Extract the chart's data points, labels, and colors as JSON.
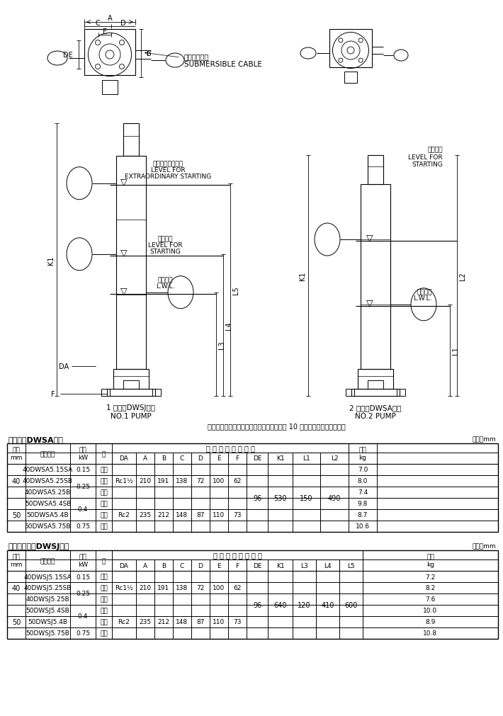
{
  "fig_width": 7.1,
  "fig_height": 10.12,
  "bg_color": "#ffffff",
  "note_text": "注）運転可能最低水位での連続運転時間は 10 分以内にしてください。",
  "pump1_label1": "1 号機（DWSJ型）",
  "pump1_label2": "NO.1 PUMP",
  "pump2_label1": "2 号機（DWSA型）",
  "pump2_label2": "NO.2 PUMP",
  "cable_jp": "水中ケーブル",
  "cable_en": "SUBMERSIBLE CABLE",
  "extrao_jp": "異常増水始動水位",
  "extrao_en1": "LEVEL FOR",
  "extrao_en2": "EXTRAORDINARY STARTING",
  "start1_jp": "始動水位",
  "start1_en1": "LEVEL FOR",
  "start1_en2": "STARTING",
  "stop1_jp": "停止水位",
  "stop1_en": "L.W.L.",
  "start2_jp": "始動水位",
  "start2_en1": "LEVEL FOR",
  "start2_en2": "STARTING",
  "stop2_jp": "停止水位",
  "stop2_en": "L.W.L.",
  "table1_title": "自動形（DWSA型）",
  "table1_unit": "単位：mm",
  "table2_title": "自動交互形（DWSJ型）",
  "table2_unit": "単位：mm",
  "pump_header": "ポ ン プ 及 び 電 動 機",
  "col_keiro": "口径",
  "col_mm": "mm",
  "col_ki": "機　　名",
  "col_shutsu": "出力",
  "col_kw": "kW",
  "col_so": "相",
  "col_mass_jp": "質量",
  "col_mass_kg": "kg",
  "dim_A": "A",
  "dim_B": "B",
  "dim_C": "C",
  "dim_D": "D",
  "dim_E": "E",
  "dim_DE": "DE",
  "dim_F": "F",
  "dim_K1": "K1",
  "dim_DA": "DA",
  "dim_L1": "L1",
  "dim_L2": "L2",
  "dim_L3": "L3",
  "dim_L4": "L4",
  "dim_L5": "L5",
  "t1_mnames": [
    "40DWSA5.15SA",
    "40DWSA5.25SB",
    "40DWSA5.25B",
    "50DWSA5.4SB",
    "50DWSA5.4B",
    "50DWSA5.75B"
  ],
  "t1_keiro": [
    "40",
    "40",
    "40",
    "50",
    "50",
    "50"
  ],
  "t1_shutsu": [
    "0.15",
    "0.25",
    "0.25",
    "0.4",
    "0.4",
    "0.75"
  ],
  "t1_so": [
    "単相",
    "単相",
    "三相",
    "単相",
    "三相",
    "三相"
  ],
  "t1_DA": [
    "Rc1½",
    "",
    "",
    "Rc2",
    "",
    ""
  ],
  "t1_A": [
    "210",
    "",
    "",
    "235",
    "",
    ""
  ],
  "t1_B": [
    "191",
    "",
    "",
    "212",
    "",
    ""
  ],
  "t1_C": [
    "138",
    "",
    "",
    "148",
    "",
    ""
  ],
  "t1_D": [
    "72",
    "",
    "",
    "87",
    "",
    ""
  ],
  "t1_E": [
    "100",
    "",
    "",
    "110",
    "",
    ""
  ],
  "t1_F": [
    "62",
    "",
    "",
    "73",
    "",
    ""
  ],
  "t1_DE": "96",
  "t1_K1": "530",
  "t1_L1": "150",
  "t1_L2": "490",
  "t1_mass": [
    "7.0",
    "8.0",
    "7.4",
    "9.8",
    "8.7",
    "10.6"
  ],
  "t2_mnames": [
    "40DWSJ5.15SA",
    "40DWSJ5.25SB",
    "40DWSJ5.25B",
    "50DWSJ5.4SB",
    "50DWSJ5.4B",
    "50DWSJ5.75B"
  ],
  "t2_keiro": [
    "40",
    "40",
    "40",
    "50",
    "50",
    "50"
  ],
  "t2_shutsu": [
    "0.15",
    "0.25",
    "0.25",
    "0.4",
    "0.4",
    "0.75"
  ],
  "t2_so": [
    "単相",
    "単相",
    "三相",
    "単相",
    "三相",
    "三相"
  ],
  "t2_DA": [
    "Rc1½",
    "",
    "",
    "Rc2",
    "",
    ""
  ],
  "t2_A": [
    "210",
    "",
    "",
    "235",
    "",
    ""
  ],
  "t2_B": [
    "191",
    "",
    "",
    "212",
    "",
    ""
  ],
  "t2_C": [
    "138",
    "",
    "",
    "148",
    "",
    ""
  ],
  "t2_D": [
    "72",
    "",
    "",
    "87",
    "",
    ""
  ],
  "t2_E": [
    "100",
    "",
    "",
    "110",
    "",
    ""
  ],
  "t2_F": [
    "62",
    "",
    "",
    "73",
    "",
    ""
  ],
  "t2_DE": "96",
  "t2_K1": "640",
  "t2_L3": "120",
  "t2_L4": "410",
  "t2_L5": "600",
  "t2_mass": [
    "7.2",
    "8.2",
    "7.6",
    "10.0",
    "8.9",
    "10.8"
  ]
}
